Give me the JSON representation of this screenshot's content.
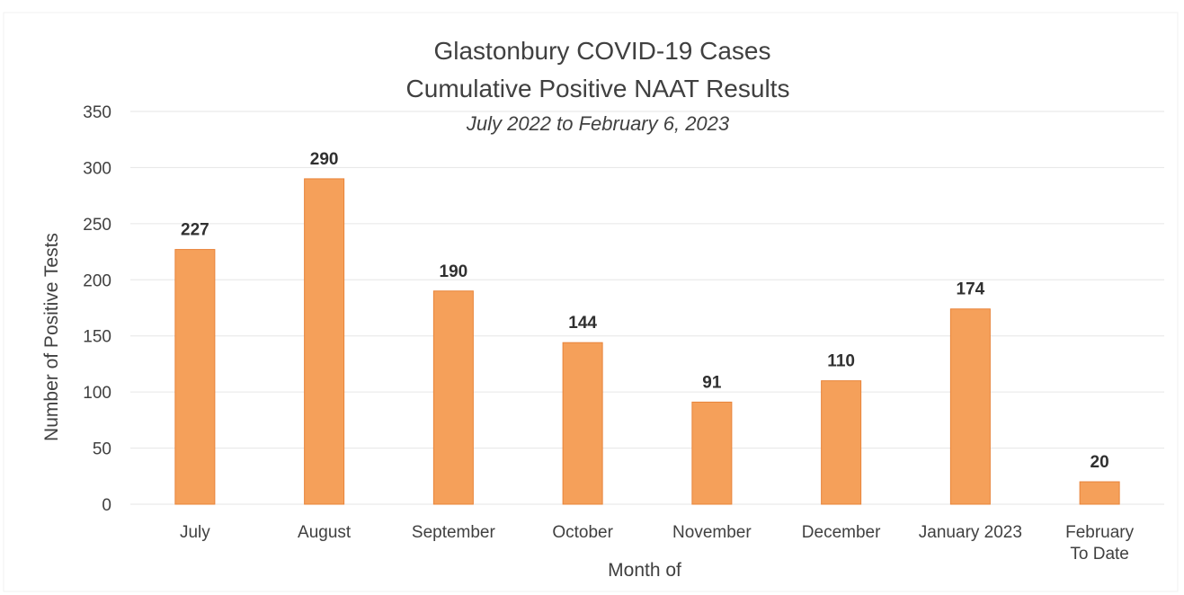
{
  "chart_data": {
    "type": "bar",
    "title": "Glastonbury COVID-19 Cases",
    "title_line2": "Cumulative Positive NAAT Results",
    "subtitle": "July 2022 to February 6, 2023",
    "xlabel": "Month of",
    "ylabel": "Number of Positive Tests",
    "categories": [
      [
        "July"
      ],
      [
        "August"
      ],
      [
        "September"
      ],
      [
        "October"
      ],
      [
        "November"
      ],
      [
        "December"
      ],
      [
        "January 2023"
      ],
      [
        "February",
        "To Date"
      ]
    ],
    "values": [
      227,
      290,
      190,
      144,
      91,
      110,
      174,
      20
    ],
    "data_labels": [
      "227",
      "290",
      "190",
      "144",
      "91",
      "110",
      "174",
      "20"
    ],
    "y_ticks": [
      0,
      50,
      100,
      150,
      200,
      250,
      300,
      350
    ],
    "ylim": [
      0,
      350
    ],
    "grid": true,
    "bar_color": "#F5A05A",
    "bar_edge_color": "#E8843A",
    "grid_color": "#E6E6E6"
  }
}
